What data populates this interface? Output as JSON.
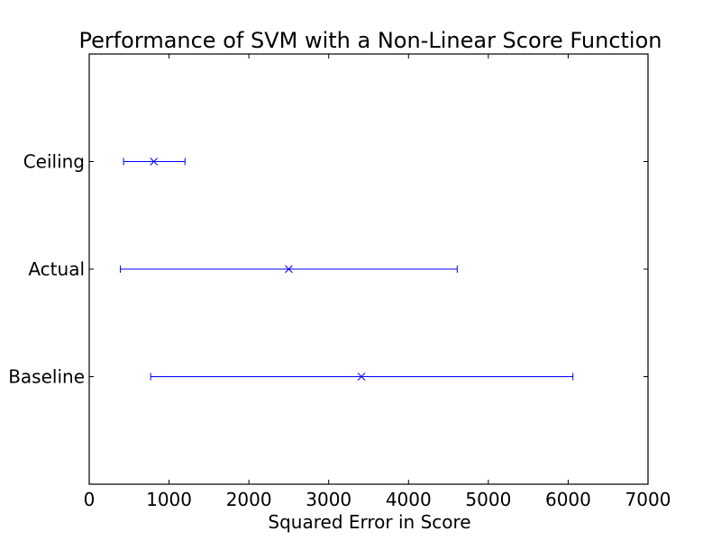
{
  "chart_data": {
    "type": "errorbar",
    "title": "Performance of SVM with a Non-Linear Score Function",
    "xlabel": "Squared Error in Score",
    "ylabel": "",
    "xlim": [
      0,
      7000
    ],
    "xticks": [
      0,
      1000,
      2000,
      3000,
      4000,
      5000,
      6000,
      7000
    ],
    "tick_labels": [
      "0",
      "1000",
      "2000",
      "3000",
      "4000",
      "5000",
      "6000",
      "7000"
    ],
    "categories": [
      "Ceiling",
      "Actual",
      "Baseline"
    ],
    "series": [
      {
        "marker": "x",
        "color": "#0000ff",
        "points": [
          {
            "category": "Ceiling",
            "mean": 810,
            "low": 430,
            "high": 1200
          },
          {
            "category": "Actual",
            "mean": 2500,
            "low": 390,
            "high": 4610
          },
          {
            "category": "Baseline",
            "mean": 3410,
            "low": 770,
            "high": 6060
          }
        ]
      }
    ],
    "grid": false,
    "legend": "none"
  }
}
